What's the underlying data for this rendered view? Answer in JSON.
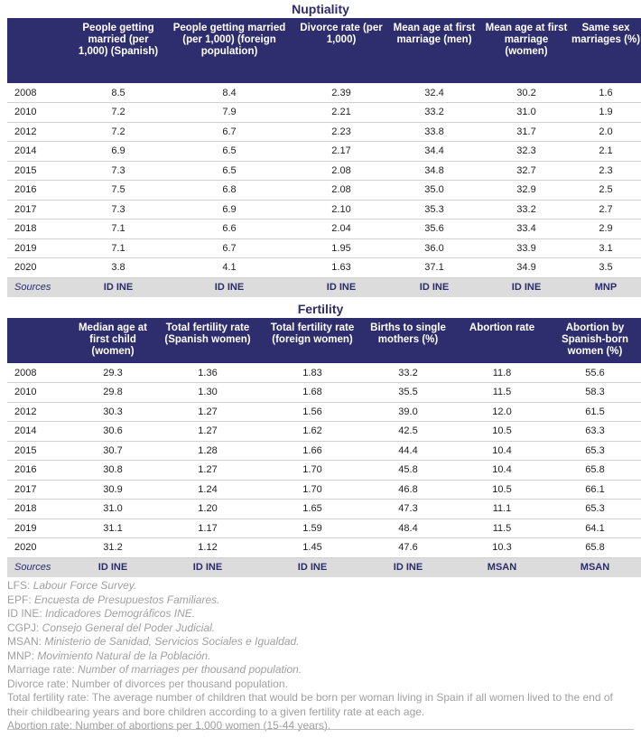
{
  "nuptiality": {
    "title": "Nuptiality",
    "headers": [
      "",
      "People getting married (per 1,000) (Spanish)",
      "People getting married (per 1,000) (foreign population)",
      "Divorce rate (per 1,000)",
      "Mean age at first marriage (men)",
      "Mean age at first marriage (women)",
      "Same sex marriages (%)"
    ],
    "rows": [
      [
        "2008",
        "8.5",
        "8.4",
        "2.39",
        "32.4",
        "30.2",
        "1.6"
      ],
      [
        "2010",
        "7.2",
        "7.9",
        "2.21",
        "33.2",
        "31.0",
        "1.9"
      ],
      [
        "2012",
        "7.2",
        "6.7",
        "2.23",
        "33.8",
        "31.7",
        "2.0"
      ],
      [
        "2014",
        "6.9",
        "6.5",
        "2.17",
        "34.4",
        "32.3",
        "2.1"
      ],
      [
        "2015",
        "7.3",
        "6.5",
        "2.08",
        "34.8",
        "32.7",
        "2.3"
      ],
      [
        "2016",
        "7.5",
        "6.8",
        "2.08",
        "35.0",
        "32.9",
        "2.5"
      ],
      [
        "2017",
        "7.3",
        "6.9",
        "2.10",
        "35.3",
        "33.2",
        "2.7"
      ],
      [
        "2018",
        "7.1",
        "6.6",
        "2.04",
        "35.6",
        "33.4",
        "2.9"
      ],
      [
        "2019",
        "7.1",
        "6.7",
        "1.95",
        "36.0",
        "33.9",
        "3.1"
      ],
      [
        "2020",
        "3.8",
        "4.1",
        "1.63",
        "37.1",
        "34.9",
        "3.5"
      ]
    ],
    "sources": [
      "Sources",
      "ID INE",
      "ID INE",
      "ID INE",
      "ID INE",
      "ID INE",
      "MNP"
    ]
  },
  "fertility": {
    "title": "Fertility",
    "headers": [
      "",
      "Median age at first child (women)",
      "Total fertility rate (Spanish women)",
      "Total fertility rate (foreign women)",
      "Births to single mothers (%)",
      "Abortion rate",
      "Abortion by Spanish-born women (%)"
    ],
    "rows": [
      [
        "2008",
        "29.3",
        "1.36",
        "1.83",
        "33.2",
        "11.8",
        "55.6"
      ],
      [
        "2010",
        "29.8",
        "1.30",
        "1.68",
        "35.5",
        "11.5",
        "58.3"
      ],
      [
        "2012",
        "30.3",
        "1.27",
        "1.56",
        "39.0",
        "12.0",
        "61.5"
      ],
      [
        "2014",
        "30.6",
        "1.27",
        "1.62",
        "42.5",
        "10.5",
        "63.3"
      ],
      [
        "2015",
        "30.7",
        "1.28",
        "1.66",
        "44.4",
        "10.4",
        "65.3"
      ],
      [
        "2016",
        "30.8",
        "1.27",
        "1.70",
        "45.8",
        "10.4",
        "65.8"
      ],
      [
        "2017",
        "30.9",
        "1.24",
        "1.70",
        "46.8",
        "10.5",
        "66.1"
      ],
      [
        "2018",
        "31.0",
        "1.20",
        "1.65",
        "47.3",
        "11.1",
        "65.3"
      ],
      [
        "2019",
        "31.1",
        "1.17",
        "1.59",
        "48.4",
        "11.5",
        "64.1"
      ],
      [
        "2020",
        "31.2",
        "1.12",
        "1.45",
        "47.6",
        "10.3",
        "65.8"
      ]
    ],
    "sources": [
      "Sources",
      "ID INE",
      "ID INE",
      "ID INE",
      "ID INE",
      "MSAN",
      "MSAN"
    ]
  },
  "notes": [
    {
      "term": "LFS: ",
      "def": "Labour Force Survey."
    },
    {
      "term": "EPF: ",
      "def": "Encuesta de Presupuestos Familiares."
    },
    {
      "term": "ID INE: ",
      "def": "Indicadores Demográficos INE."
    },
    {
      "term": "CGPJ: ",
      "def": "Consejo General del Poder Judicial."
    },
    {
      "term": "MSAN: ",
      "def": "Ministerio de Sanidad, Servicios Sociales e Igualdad."
    },
    {
      "term": "MNP: ",
      "def": "Movimiento Natural de la Población."
    },
    {
      "term": "Marriage rate: ",
      "def": "Number of marriages per thousand population."
    },
    {
      "term": "Divorce rate: ",
      "def": "Number of divorces per thousand population.",
      "plain": true
    },
    {
      "term": "Total fertility rate: ",
      "def": "The average number of children that would be born per woman living in Spain if all women lived to the end of their childbearing years and bore children according to a given fertility rate at each age.",
      "plain": true
    },
    {
      "term": "Abortion rate: ",
      "def": "Number of abortions per 1,000 women (15-44 years).",
      "plain": true
    }
  ],
  "colors": {
    "header_bg": "#2e2e6e",
    "title": "#2c2c6c",
    "sources_bg": "#dcdcdc",
    "note_text": "#a0a0a0"
  }
}
